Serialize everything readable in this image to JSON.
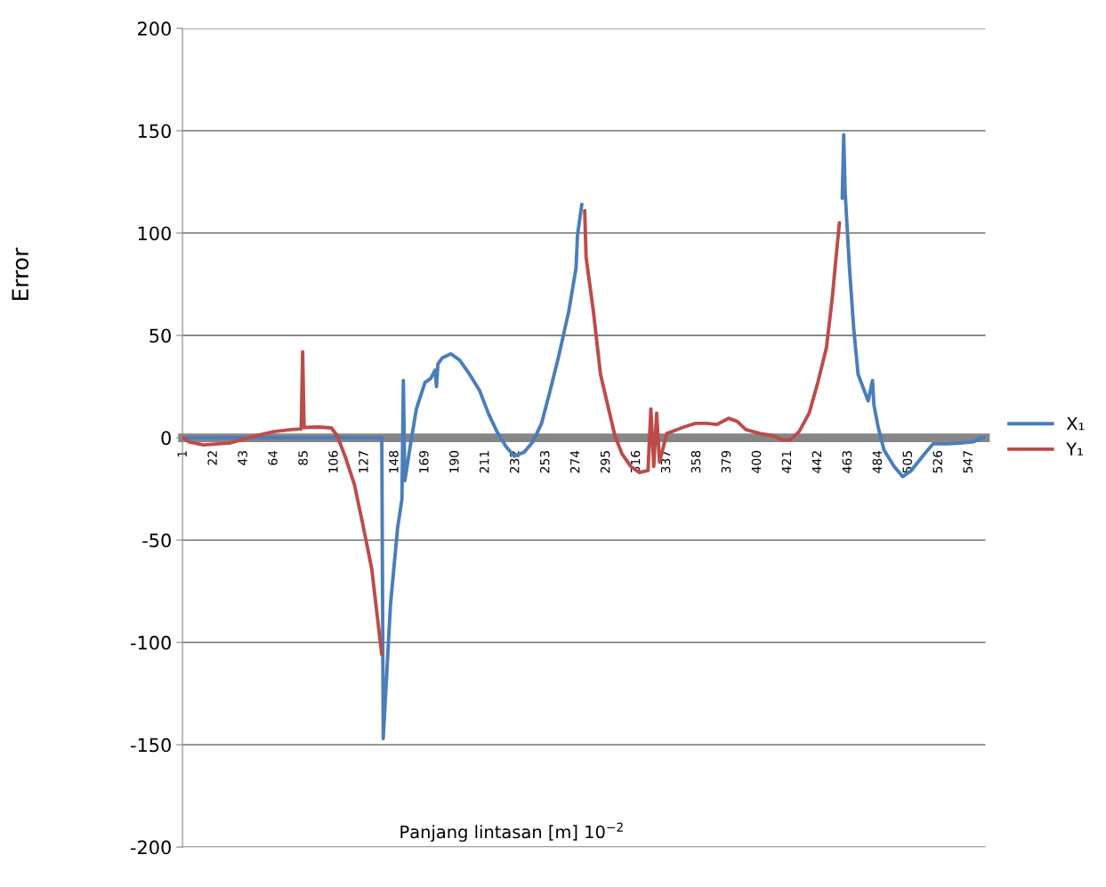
{
  "chart_data": {
    "type": "line",
    "xlabel": "Panjang lintasan [m] 10$^{−2}$",
    "ylabel": "Error",
    "xlim": [
      0.5,
      558.5
    ],
    "xticks": [
      1,
      22,
      43,
      64,
      85,
      106,
      127,
      148,
      169,
      190,
      211,
      232,
      253,
      274,
      295,
      316,
      337,
      358,
      379,
      400,
      421,
      442,
      463,
      484,
      505,
      526,
      547
    ],
    "ylim": [
      -200,
      200
    ],
    "yticks": [
      -200,
      -150,
      -100,
      -50,
      0,
      50,
      100,
      150,
      200
    ],
    "grid": "y",
    "legend": "right",
    "marker": "none",
    "line_style": "solid",
    "series": [
      {
        "name": "X₁",
        "color": "#4a7ebb",
        "x": [
          1,
          139,
          140,
          145,
          150,
          153,
          154,
          155,
          159,
          163,
          169,
          173,
          176,
          177,
          178,
          181,
          187,
          193,
          200,
          207,
          213,
          219,
          225,
          231,
          238,
          244,
          250,
          256,
          262,
          269,
          274,
          275,
          278,
          279,
          459,
          460,
          461,
          464,
          467,
          470,
          477,
          480,
          481,
          484,
          488,
          495,
          501,
          507,
          516,
          522,
          532,
          541,
          550,
          556,
          558
        ],
        "values": [
          0,
          0,
          -147,
          -82,
          -44,
          -30,
          28,
          -21,
          -3,
          14,
          27,
          29,
          33,
          25,
          36,
          39,
          41,
          38,
          31,
          23,
          12,
          3,
          -4,
          -9,
          -7,
          -2,
          7,
          23,
          40,
          62,
          83,
          99,
          114,
          null,
          117,
          148,
          120,
          83,
          53,
          31,
          18,
          28,
          16,
          5,
          -6,
          -14,
          -19,
          -16,
          -8,
          -3,
          -3,
          -2.6,
          -2,
          0,
          0
        ]
      },
      {
        "name": "Y₁",
        "color": "#be4b48",
        "x": [
          1,
          5,
          15,
          33,
          52,
          64,
          76,
          83,
          84,
          85,
          95,
          104,
          108,
          114,
          120,
          126,
          132,
          135,
          139,
          140,
          280,
          281,
          286,
          291,
          296,
          301,
          306,
          312,
          318,
          324,
          326,
          328,
          330,
          332,
          337,
          348,
          357,
          365,
          372,
          380,
          386,
          392,
          402,
          411,
          417,
          423,
          429,
          436,
          442,
          448,
          452,
          454,
          457
        ],
        "values": [
          0,
          -2,
          -3.5,
          -2.6,
          1,
          3,
          4,
          4.3,
          42,
          5,
          5.2,
          4.8,
          1,
          -10,
          -23,
          -43,
          -64,
          -82,
          -106,
          null,
          111,
          88,
          62,
          31,
          16,
          1,
          -8,
          -14,
          -17,
          -16,
          14,
          -14,
          12,
          -12,
          2,
          5,
          7,
          7,
          6.5,
          9.5,
          8,
          4,
          2,
          1,
          -1,
          -1,
          3,
          12,
          27,
          44,
          68,
          83,
          105
        ]
      }
    ]
  }
}
